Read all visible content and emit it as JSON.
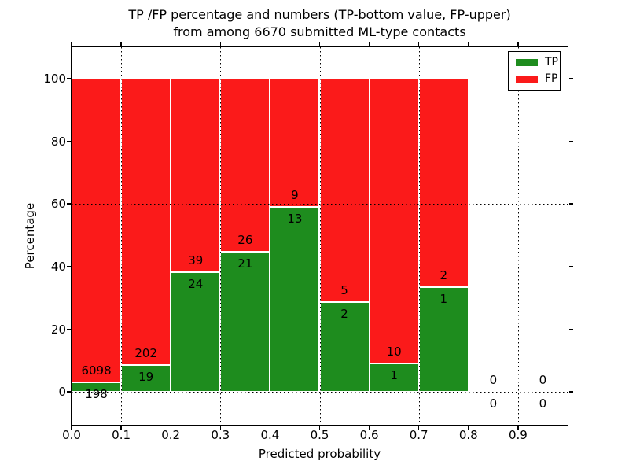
{
  "figure": {
    "title_line1": "TP /FP percentage and numbers (TP-bottom value, FP-upper)",
    "title_line2": "from among 6670 submitted ML-type contacts",
    "xlabel": "Predicted probability",
    "ylabel": "Percentage"
  },
  "chart_data": {
    "type": "bar",
    "stacked": true,
    "title": "TP /FP percentage and numbers (TP-bottom value, FP-upper)\nfrom among 6670 submitted ML-type contacts",
    "xlabel": "Predicted probability",
    "ylabel": "Percentage",
    "total_contacts_in_title": 6670,
    "bin_width": 0.1,
    "x_ticks": [
      "0.0",
      "0.1",
      "0.2",
      "0.3",
      "0.4",
      "0.5",
      "0.6",
      "0.7",
      "0.8",
      "0.9"
    ],
    "x_tick_values": [
      0.0,
      0.1,
      0.2,
      0.3,
      0.4,
      0.5,
      0.6,
      0.7,
      0.8,
      0.9
    ],
    "y_ticks": [
      "0",
      "20",
      "40",
      "60",
      "80",
      "100"
    ],
    "y_tick_values": [
      0,
      20,
      40,
      60,
      80,
      100
    ],
    "xlim": [
      0.0,
      1.0
    ],
    "ylim": [
      -10.5,
      110
    ],
    "grid": true,
    "grid_linestyle": "dotted",
    "legend_position": "upper right",
    "series": [
      {
        "name": "TP",
        "color": "#1e8c1e",
        "position": "bottom"
      },
      {
        "name": "FP",
        "color": "#fb1a1a",
        "position": "top"
      }
    ],
    "bins": [
      {
        "x_start": 0.0,
        "x_end": 0.1,
        "tp_count": 198,
        "fp_count": 6098,
        "tp_pct": 3.1,
        "fp_pct": 96.9
      },
      {
        "x_start": 0.1,
        "x_end": 0.2,
        "tp_count": 19,
        "fp_count": 202,
        "tp_pct": 8.6,
        "fp_pct": 91.4
      },
      {
        "x_start": 0.2,
        "x_end": 0.3,
        "tp_count": 24,
        "fp_count": 39,
        "tp_pct": 38.1,
        "fp_pct": 61.9
      },
      {
        "x_start": 0.3,
        "x_end": 0.4,
        "tp_count": 21,
        "fp_count": 26,
        "tp_pct": 44.7,
        "fp_pct": 55.3
      },
      {
        "x_start": 0.4,
        "x_end": 0.5,
        "tp_count": 13,
        "fp_count": 9,
        "tp_pct": 59.1,
        "fp_pct": 40.9
      },
      {
        "x_start": 0.5,
        "x_end": 0.6,
        "tp_count": 2,
        "fp_count": 5,
        "tp_pct": 28.6,
        "fp_pct": 71.4
      },
      {
        "x_start": 0.6,
        "x_end": 0.7,
        "tp_count": 1,
        "fp_count": 10,
        "tp_pct": 9.1,
        "fp_pct": 90.9
      },
      {
        "x_start": 0.7,
        "x_end": 0.8,
        "tp_count": 1,
        "fp_count": 2,
        "tp_pct": 33.3,
        "fp_pct": 66.7
      },
      {
        "x_start": 0.8,
        "x_end": 0.9,
        "tp_count": 0,
        "fp_count": 0,
        "tp_pct": null,
        "fp_pct": null
      },
      {
        "x_start": 0.9,
        "x_end": 1.0,
        "tp_count": 0,
        "fp_count": 0,
        "tp_pct": null,
        "fp_pct": null
      }
    ]
  }
}
